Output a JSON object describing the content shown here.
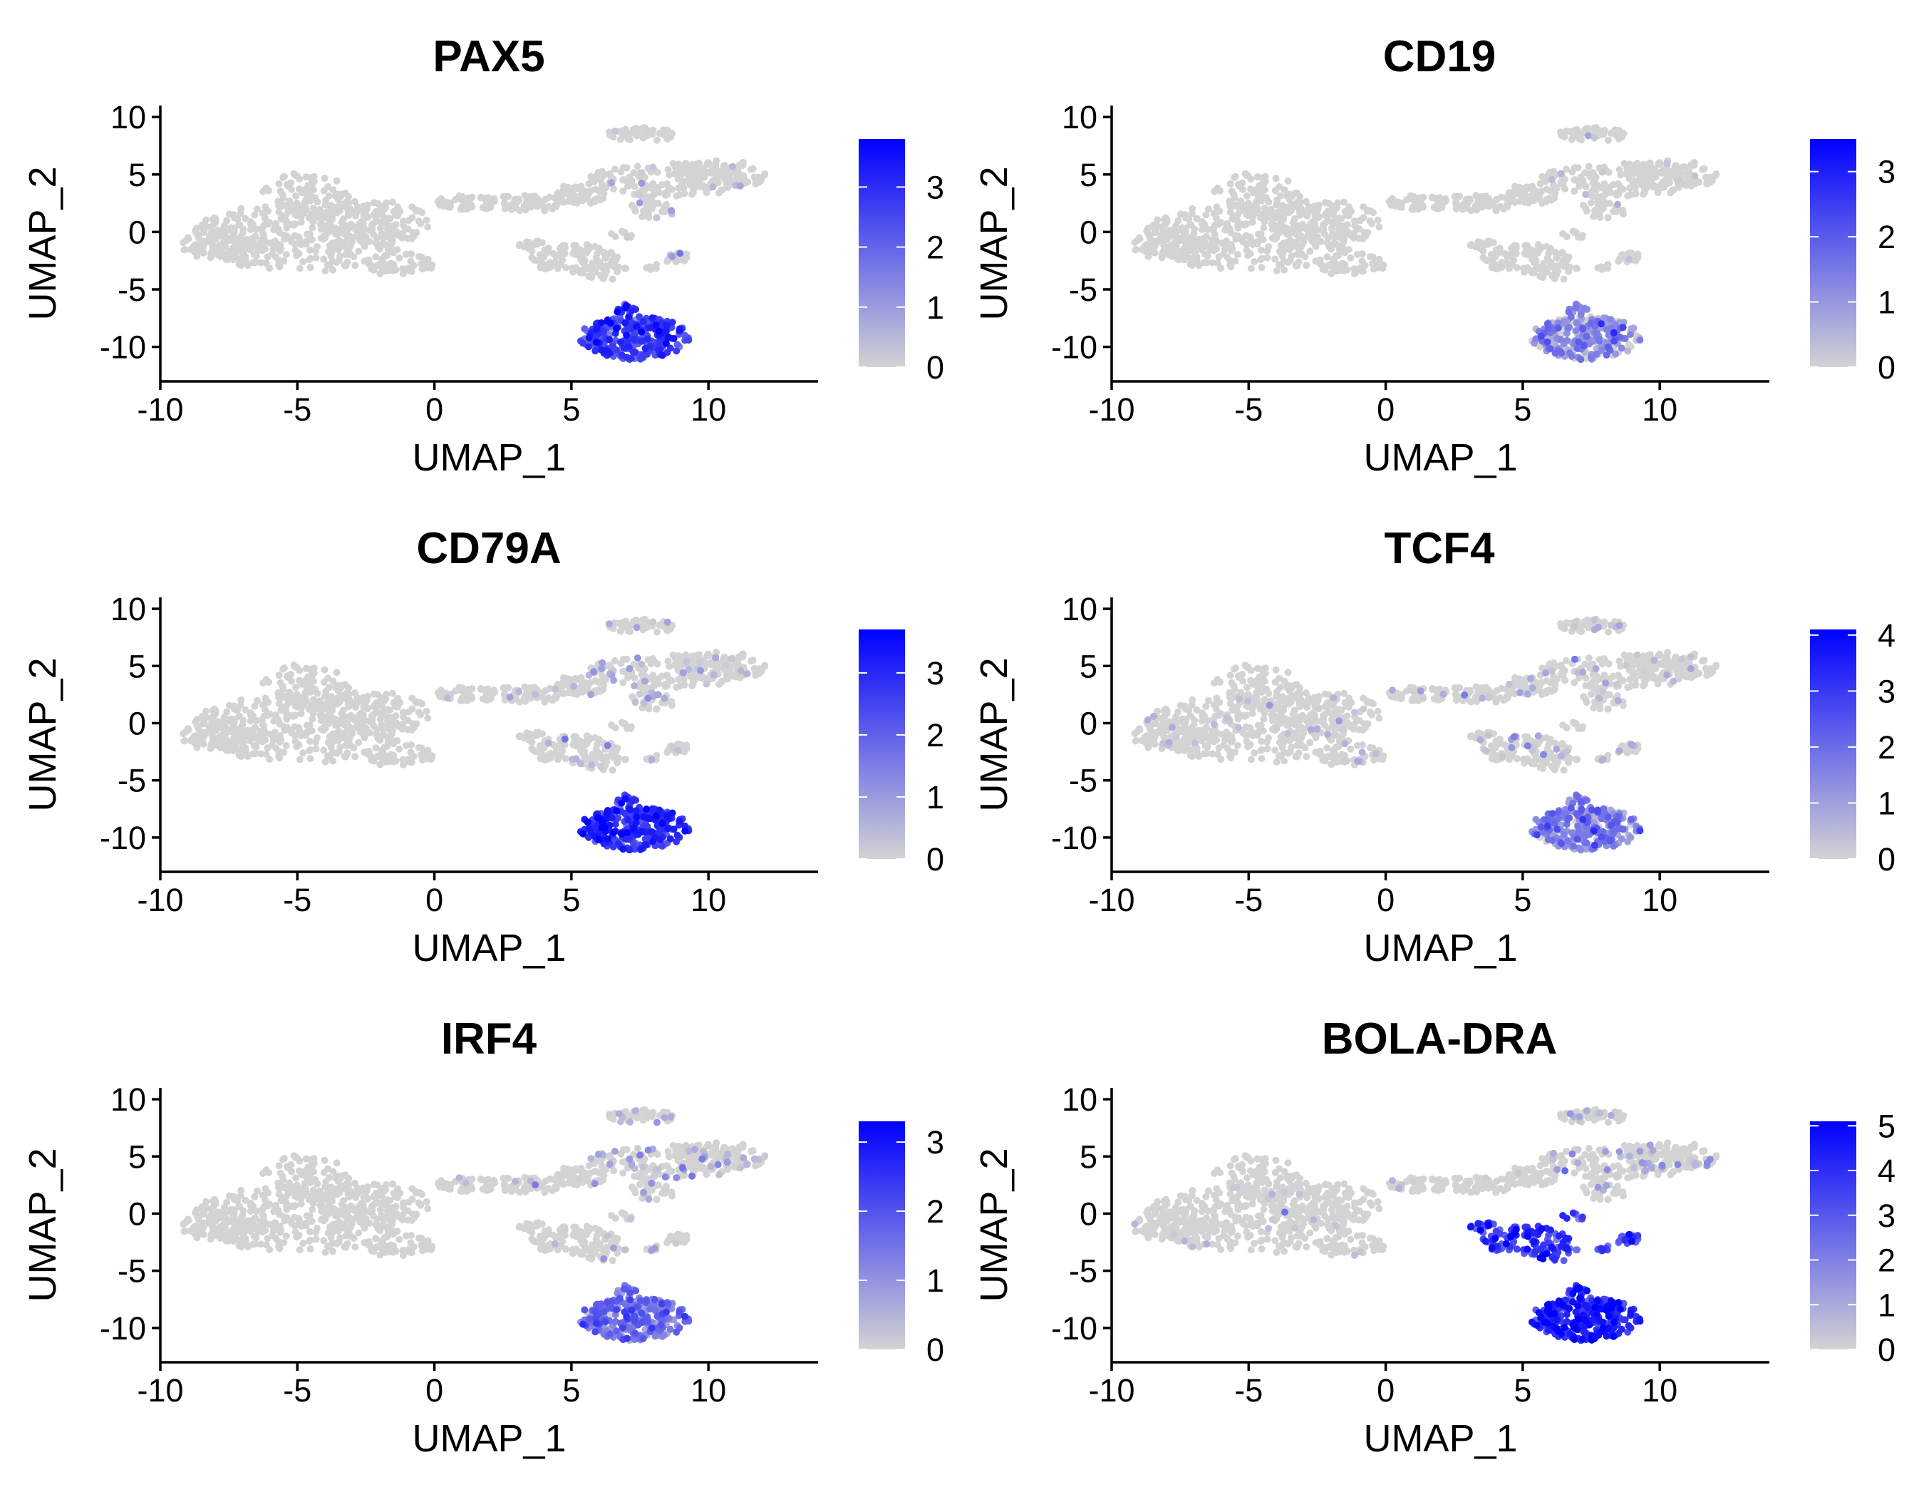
{
  "colors": {
    "low": "#d3d3d3",
    "high": "#0000ff",
    "axis": "#000000",
    "background": "#ffffff"
  },
  "chart_data": [
    {
      "type": "scatter",
      "title": "PAX5",
      "xlabel": "UMAP_1",
      "ylabel": "UMAP_2",
      "xlim": [
        -10,
        14
      ],
      "ylim": [
        -13,
        11
      ],
      "xticks": [
        -10,
        -5,
        0,
        5,
        10
      ],
      "xtick_labels": [
        "-10",
        "-5",
        "0",
        "5",
        "10"
      ],
      "yticks": [
        -10,
        -5,
        0,
        5,
        10
      ],
      "ytick_labels": [
        "-10",
        "-5",
        "0",
        "5",
        "10"
      ],
      "color_scale": {
        "min": 0,
        "max": 3.8,
        "ticks": [
          0,
          1,
          2,
          3
        ],
        "tick_labels": [
          "0",
          "1",
          "2",
          "3"
        ]
      },
      "expression_by_cluster": {
        "left_mass": 0,
        "bridge": 0,
        "upper_right": 0.05,
        "mid_island": 0,
        "small_islands": 0.1,
        "bottom_b_cell": 2.6
      }
    },
    {
      "type": "scatter",
      "title": "CD19",
      "xlabel": "UMAP_1",
      "ylabel": "UMAP_2",
      "xlim": [
        -10,
        14
      ],
      "ylim": [
        -13,
        11
      ],
      "xticks": [
        -10,
        -5,
        0,
        5,
        10
      ],
      "xtick_labels": [
        "-10",
        "-5",
        "0",
        "5",
        "10"
      ],
      "yticks": [
        -10,
        -5,
        0,
        5,
        10
      ],
      "ytick_labels": [
        "-10",
        "-5",
        "0",
        "5",
        "10"
      ],
      "color_scale": {
        "min": 0,
        "max": 3.5,
        "ticks": [
          0,
          1,
          2,
          3
        ],
        "tick_labels": [
          "0",
          "1",
          "2",
          "3"
        ]
      },
      "expression_by_cluster": {
        "left_mass": 0,
        "bridge": 0,
        "upper_right": 0.03,
        "mid_island": 0,
        "small_islands": 0.15,
        "bottom_b_cell": 1.2
      }
    },
    {
      "type": "scatter",
      "title": "CD79A",
      "xlabel": "UMAP_1",
      "ylabel": "UMAP_2",
      "xlim": [
        -10,
        14
      ],
      "ylim": [
        -13,
        11
      ],
      "xticks": [
        -10,
        -5,
        0,
        5,
        10
      ],
      "xtick_labels": [
        "-10",
        "-5",
        "0",
        "5",
        "10"
      ],
      "yticks": [
        -10,
        -5,
        0,
        5,
        10
      ],
      "ytick_labels": [
        "-10",
        "-5",
        "0",
        "5",
        "10"
      ],
      "color_scale": {
        "min": 0,
        "max": 3.7,
        "ticks": [
          0,
          1,
          2,
          3
        ],
        "tick_labels": [
          "0",
          "1",
          "2",
          "3"
        ]
      },
      "expression_by_cluster": {
        "left_mass": 0,
        "bridge": 0.05,
        "upper_right": 0.25,
        "mid_island": 0.02,
        "small_islands": 0.3,
        "bottom_b_cell": 2.8
      }
    },
    {
      "type": "scatter",
      "title": "TCF4",
      "xlabel": "UMAP_1",
      "ylabel": "UMAP_2",
      "xlim": [
        -10,
        14
      ],
      "ylim": [
        -13,
        11
      ],
      "xticks": [
        -10,
        -5,
        0,
        5,
        10
      ],
      "xtick_labels": [
        "-10",
        "-5",
        "0",
        "5",
        "10"
      ],
      "yticks": [
        -10,
        -5,
        0,
        5,
        10
      ],
      "ytick_labels": [
        "-10",
        "-5",
        "0",
        "5",
        "10"
      ],
      "color_scale": {
        "min": 0,
        "max": 4.1,
        "ticks": [
          0,
          1,
          2,
          3,
          4
        ],
        "tick_labels": [
          "0",
          "1",
          "2",
          "3",
          "4"
        ]
      },
      "expression_by_cluster": {
        "left_mass": 0.1,
        "bridge": 0.1,
        "upper_right": 0.2,
        "mid_island": 0.3,
        "small_islands": 0.4,
        "bottom_b_cell": 1.5
      }
    },
    {
      "type": "scatter",
      "title": "IRF4",
      "xlabel": "UMAP_1",
      "ylabel": "UMAP_2",
      "xlim": [
        -10,
        14
      ],
      "ylim": [
        -13,
        11
      ],
      "xticks": [
        -10,
        -5,
        0,
        5,
        10
      ],
      "xtick_labels": [
        "-10",
        "-5",
        "0",
        "5",
        "10"
      ],
      "yticks": [
        -10,
        -5,
        0,
        5,
        10
      ],
      "ytick_labels": [
        "-10",
        "-5",
        "0",
        "5",
        "10"
      ],
      "color_scale": {
        "min": 0,
        "max": 3.3,
        "ticks": [
          0,
          1,
          2,
          3
        ],
        "tick_labels": [
          "0",
          "1",
          "2",
          "3"
        ]
      },
      "expression_by_cluster": {
        "left_mass": 0,
        "bridge": 0.05,
        "upper_right": 0.3,
        "mid_island": 0.05,
        "small_islands": 0.1,
        "bottom_b_cell": 1.4
      }
    },
    {
      "type": "scatter",
      "title": "BOLA-DRA",
      "xlabel": "UMAP_1",
      "ylabel": "UMAP_2",
      "xlim": [
        -10,
        14
      ],
      "ylim": [
        -13,
        11
      ],
      "xticks": [
        -10,
        -5,
        0,
        5,
        10
      ],
      "xtick_labels": [
        "-10",
        "-5",
        "0",
        "5",
        "10"
      ],
      "yticks": [
        -10,
        -5,
        0,
        5,
        10
      ],
      "ytick_labels": [
        "-10",
        "-5",
        "0",
        "5",
        "10"
      ],
      "color_scale": {
        "min": 0,
        "max": 5.1,
        "ticks": [
          0,
          1,
          2,
          3,
          4,
          5
        ],
        "tick_labels": [
          "0",
          "1",
          "2",
          "3",
          "4",
          "5"
        ]
      },
      "expression_by_cluster": {
        "left_mass": 0.05,
        "bridge": 0.1,
        "upper_right": 0.4,
        "mid_island": 3.6,
        "small_islands": 3.0,
        "bottom_b_cell": 4.2
      }
    }
  ]
}
